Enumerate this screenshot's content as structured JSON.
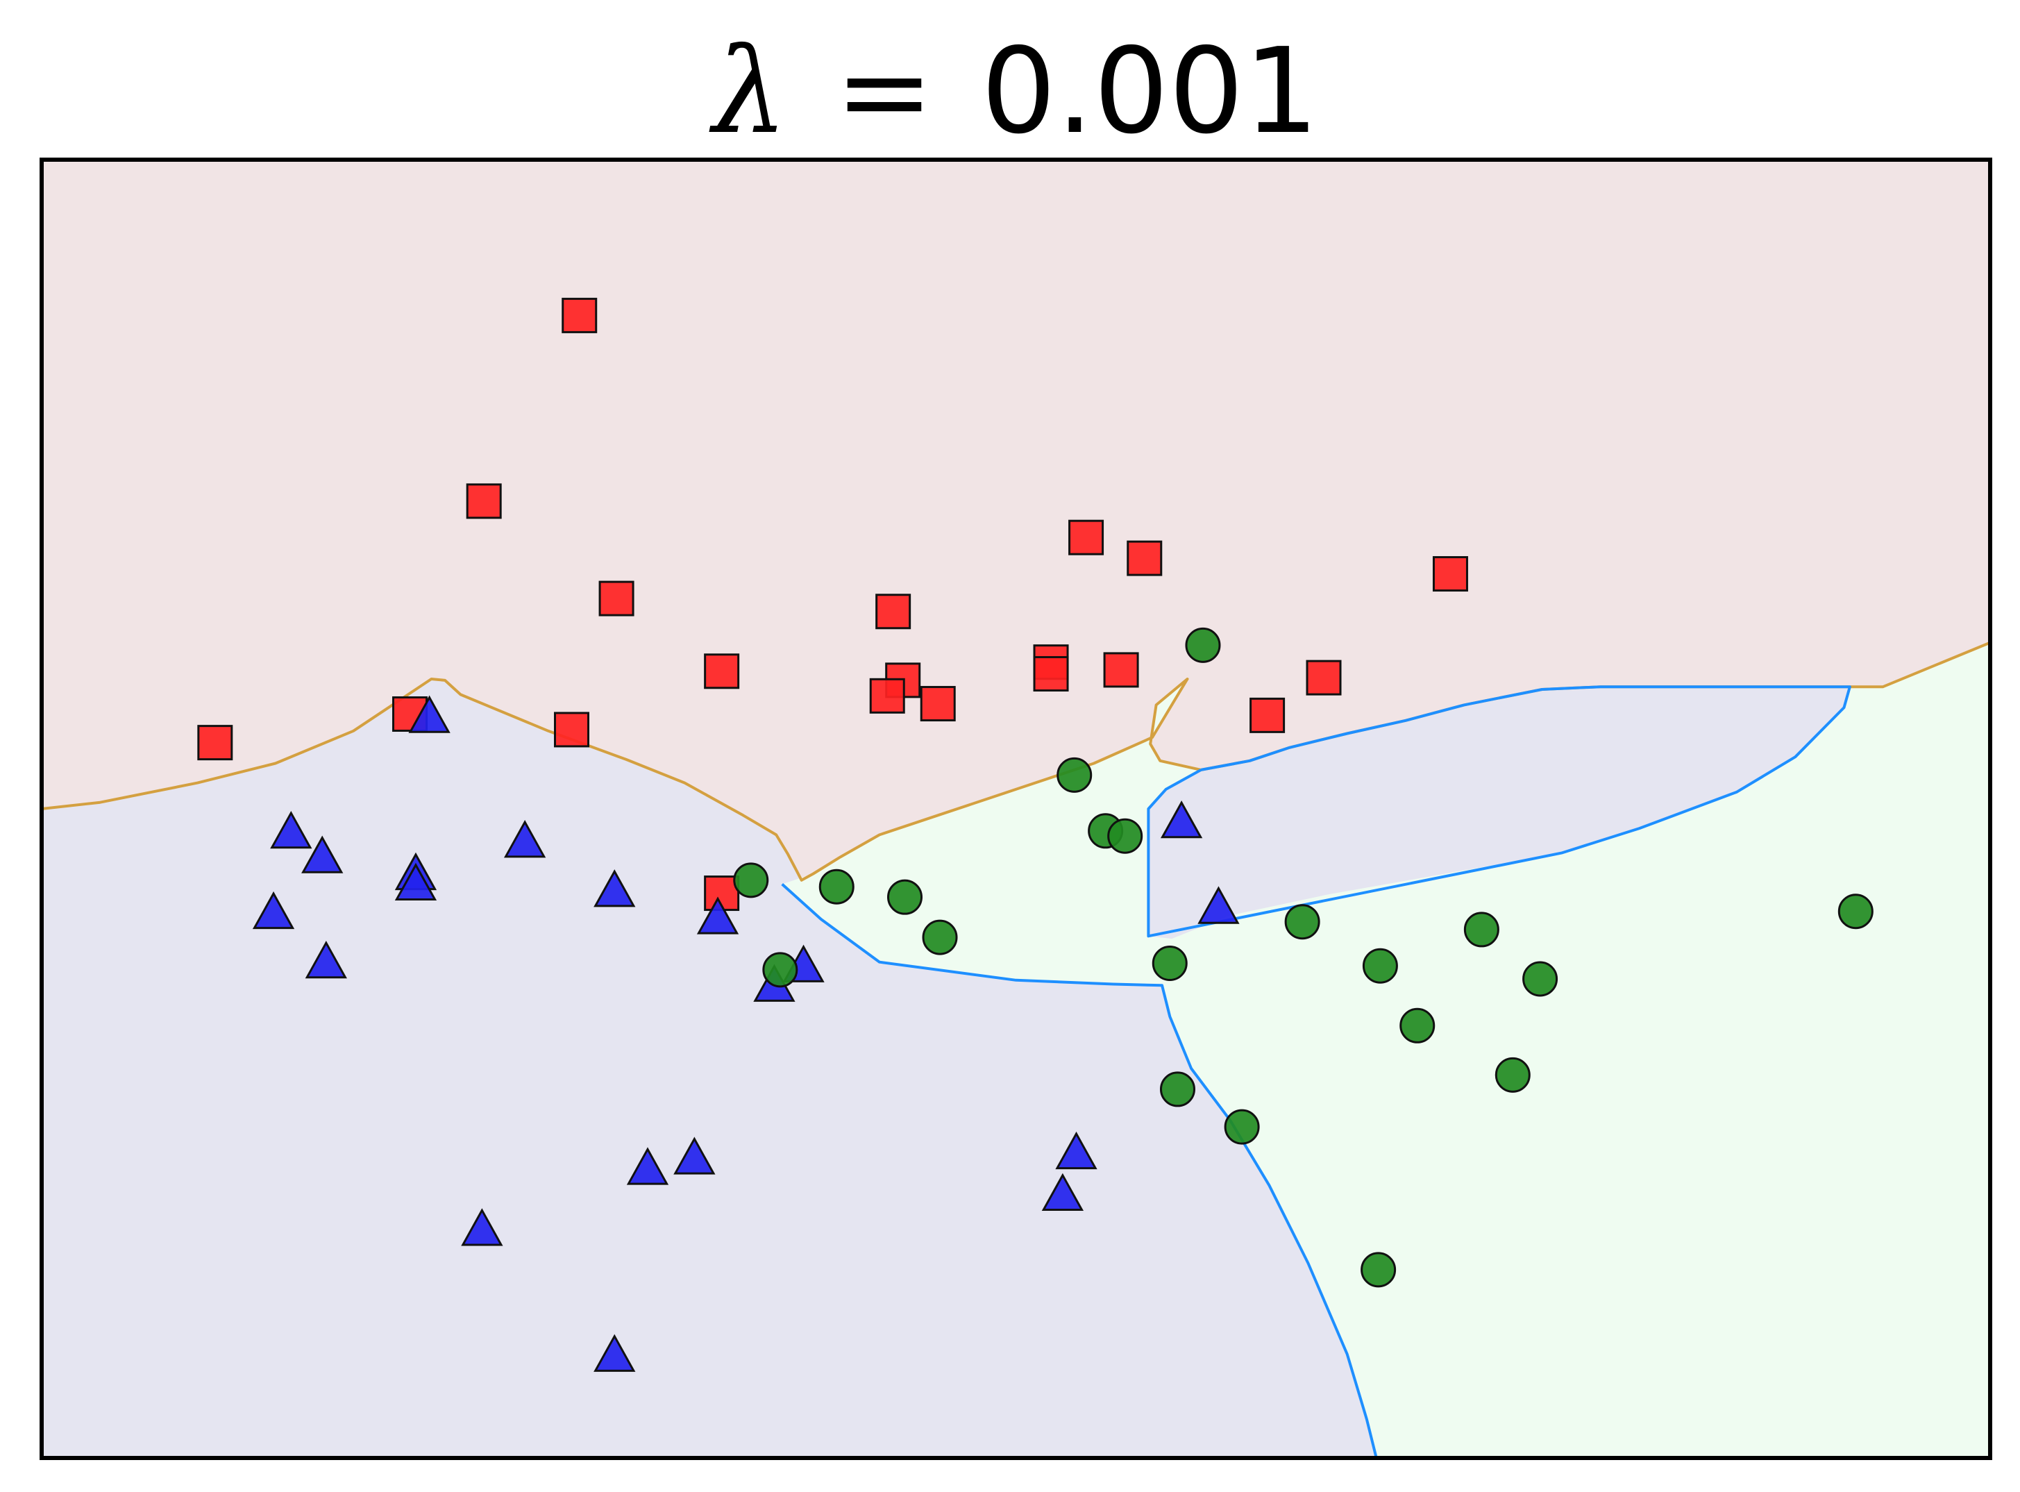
{
  "chart_data": {
    "type": "scatter",
    "title": "λ = 0.001",
    "title_parts": {
      "symbol": "λ",
      "eq": "=",
      "value": "0.001"
    },
    "xlabel": "",
    "ylabel": "",
    "xlim": [
      0,
      100
    ],
    "ylim": [
      0,
      100
    ],
    "ticks_visible": false,
    "grid": false,
    "legend": "none",
    "colors": {
      "red_region": "#f1e4e5",
      "blue_region": "#e5e5f1",
      "green_region": "#effcf1",
      "red_marker": "#ff2222",
      "blue_marker": "#2222ee",
      "green_marker": "#228b22",
      "edge": "#111111"
    },
    "regions": {
      "red_boundary": [
        [
          0,
          50
        ],
        [
          3,
          50.5
        ],
        [
          8,
          52
        ],
        [
          12,
          53.5
        ],
        [
          16,
          56
        ],
        [
          18,
          58
        ],
        [
          20,
          60
        ],
        [
          20.7,
          59.9
        ],
        [
          21.5,
          58.8
        ],
        [
          26,
          56
        ],
        [
          30,
          53.8
        ],
        [
          33,
          52
        ],
        [
          36,
          49.5
        ],
        [
          37.7,
          48
        ],
        [
          38.3,
          46.5
        ],
        [
          39,
          44.5
        ],
        [
          39.6,
          45
        ],
        [
          41,
          46.3
        ],
        [
          43,
          48
        ],
        [
          46,
          49.5
        ],
        [
          50,
          51.5
        ],
        [
          54,
          53.5
        ],
        [
          57,
          55.5
        ],
        [
          58.8,
          60
        ],
        [
          57.2,
          58
        ],
        [
          56.9,
          55
        ],
        [
          57.4,
          53.7
        ],
        [
          59.5,
          53
        ],
        [
          62,
          53.7
        ],
        [
          64,
          54.7
        ],
        [
          67,
          55.8
        ],
        [
          70,
          56.8
        ],
        [
          73,
          58
        ],
        [
          77,
          59.2
        ],
        [
          80,
          59.4
        ],
        [
          90,
          59.4
        ],
        [
          94.5,
          59.4
        ],
        [
          100,
          62.8
        ]
      ],
      "green_boundary": [
        [
          38,
          44.2
        ],
        [
          40,
          41.5
        ],
        [
          43,
          38.2
        ],
        [
          50,
          36.8
        ],
        [
          55,
          36.5
        ],
        [
          57.5,
          36.4
        ],
        [
          57.9,
          34
        ],
        [
          59,
          30
        ],
        [
          61,
          26
        ],
        [
          63,
          21
        ],
        [
          65,
          15
        ],
        [
          67,
          8
        ],
        [
          68,
          3
        ],
        [
          68.5,
          0
        ]
      ],
      "green_notch": [
        [
          58.8,
          60
        ],
        [
          57.2,
          58
        ],
        [
          56.9,
          55
        ],
        [
          57.4,
          53.7
        ],
        [
          59.5,
          53
        ],
        [
          57.7,
          51.5
        ],
        [
          56.8,
          50
        ],
        [
          56.8,
          40.2
        ],
        [
          58,
          40
        ],
        [
          59,
          40.6
        ],
        [
          61,
          41.8
        ],
        [
          66,
          43.4
        ],
        [
          72,
          45
        ],
        [
          78,
          46.6
        ],
        [
          82,
          48.5
        ],
        [
          87,
          51.3
        ],
        [
          90,
          54
        ],
        [
          92.5,
          57.8
        ],
        [
          92.8,
          59.4
        ],
        [
          80,
          59.4
        ],
        [
          77,
          59.2
        ],
        [
          73,
          58
        ],
        [
          70,
          56.8
        ],
        [
          67,
          55.8
        ],
        [
          64,
          54.7
        ],
        [
          62,
          53.7
        ],
        [
          59.5,
          53
        ],
        [
          57.4,
          53.7
        ],
        [
          56.9,
          55
        ],
        [
          57.2,
          58
        ]
      ]
    },
    "series": [
      {
        "marker": "square",
        "color": "#ff2222",
        "points": [
          [
            27.6,
            88
          ],
          [
            22.7,
            73.7
          ],
          [
            29.5,
            66.2
          ],
          [
            27.2,
            56.1
          ],
          [
            8.9,
            55.1
          ],
          [
            18.9,
            57.3
          ],
          [
            34.9,
            60.6
          ],
          [
            43.7,
            65.2
          ],
          [
            44.2,
            59.9
          ],
          [
            43.4,
            58.7
          ],
          [
            46.0,
            58.1
          ],
          [
            53.6,
            70.9
          ],
          [
            56.6,
            69.3
          ],
          [
            51.8,
            61.3
          ],
          [
            51.8,
            60.4
          ],
          [
            55.4,
            60.7
          ],
          [
            62.9,
            57.2
          ],
          [
            65.8,
            60.1
          ],
          [
            72.3,
            68.1
          ],
          [
            34.9,
            43.5
          ]
        ]
      },
      {
        "marker": "triangle",
        "color": "#2222ee",
        "points": [
          [
            19.9,
            57.1
          ],
          [
            12.8,
            48.2
          ],
          [
            14.4,
            46.3
          ],
          [
            19.2,
            45.0
          ],
          [
            19.2,
            44.2
          ],
          [
            24.8,
            47.5
          ],
          [
            29.4,
            43.7
          ],
          [
            11.9,
            42.0
          ],
          [
            14.6,
            38.2
          ],
          [
            34.7,
            41.6
          ],
          [
            39.1,
            37.9
          ],
          [
            37.6,
            36.4
          ],
          [
            58.5,
            49.0
          ],
          [
            60.4,
            42.4
          ],
          [
            31.1,
            22.3
          ],
          [
            33.5,
            23.1
          ],
          [
            22.6,
            17.6
          ],
          [
            53.1,
            23.5
          ],
          [
            52.4,
            20.3
          ],
          [
            29.4,
            7.9
          ]
        ]
      },
      {
        "marker": "circle",
        "color": "#228b22",
        "points": [
          [
            59.6,
            62.6
          ],
          [
            53.0,
            52.6
          ],
          [
            54.6,
            48.3
          ],
          [
            55.6,
            47.9
          ],
          [
            36.4,
            44.5
          ],
          [
            40.8,
            44.0
          ],
          [
            44.3,
            43.2
          ],
          [
            46.1,
            40.1
          ],
          [
            37.9,
            37.6
          ],
          [
            57.9,
            38.1
          ],
          [
            64.7,
            41.3
          ],
          [
            68.7,
            37.9
          ],
          [
            73.9,
            40.7
          ],
          [
            76.9,
            36.9
          ],
          [
            70.6,
            33.3
          ],
          [
            75.5,
            29.5
          ],
          [
            58.3,
            28.4
          ],
          [
            61.6,
            25.5
          ],
          [
            68.6,
            14.5
          ],
          [
            93.1,
            42.1
          ]
        ]
      }
    ]
  }
}
